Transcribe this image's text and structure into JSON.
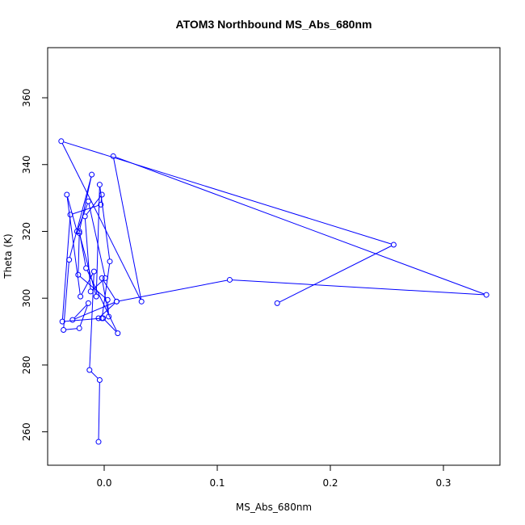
{
  "chart_data": {
    "type": "line",
    "title": "ATOM3 Northbound MS_Abs_680nm",
    "xlabel": "MS_Abs_680nm",
    "ylabel": "Theta (K)",
    "xlim": [
      -0.05,
      0.35
    ],
    "ylim": [
      250,
      375
    ],
    "xticks": [
      0.0,
      0.1,
      0.2,
      0.3
    ],
    "xtick_labels": [
      "0.0",
      "0.1",
      "0.2",
      "0.3"
    ],
    "yticks": [
      260,
      280,
      300,
      320,
      340,
      360
    ],
    "ytick_labels": [
      "260",
      "280",
      "300",
      "320",
      "340",
      "360"
    ],
    "grid": false,
    "series_color": "#0000ff",
    "marker": "open-circle",
    "series": [
      {
        "x": [
          -0.005,
          -0.004,
          -0.013,
          -0.009,
          -0.021,
          -0.033,
          -0.024,
          -0.014,
          0.001,
          -0.012,
          -0.017,
          -0.002,
          -0.003,
          -0.03,
          -0.037,
          -0.002,
          0.005,
          -0.004,
          -0.007,
          -0.022,
          -0.023,
          0.003,
          0.004,
          -0.002,
          0.011,
          -0.028,
          -0.014,
          -0.022,
          -0.036,
          -0.031,
          -0.011,
          -0.022,
          -0.016,
          0.012,
          -0.001,
          -0.005,
          0.011,
          0.111,
          0.338,
          0.008,
          0.033,
          -0.038,
          0.256,
          0.153
        ],
        "y": [
          257,
          275.5,
          278.5,
          308,
          300.5,
          331,
          320,
          329,
          306,
          302,
          324.5,
          331,
          328,
          325,
          293,
          294,
          311,
          334,
          300.5,
          319.5,
          307,
          299.5,
          294.5,
          306,
          299,
          293.5,
          298.5,
          291,
          290.5,
          311.5,
          337,
          320,
          309,
          289.5,
          294,
          294,
          299,
          305.5,
          301,
          342.5,
          299,
          347,
          316,
          298.5
        ]
      }
    ]
  }
}
